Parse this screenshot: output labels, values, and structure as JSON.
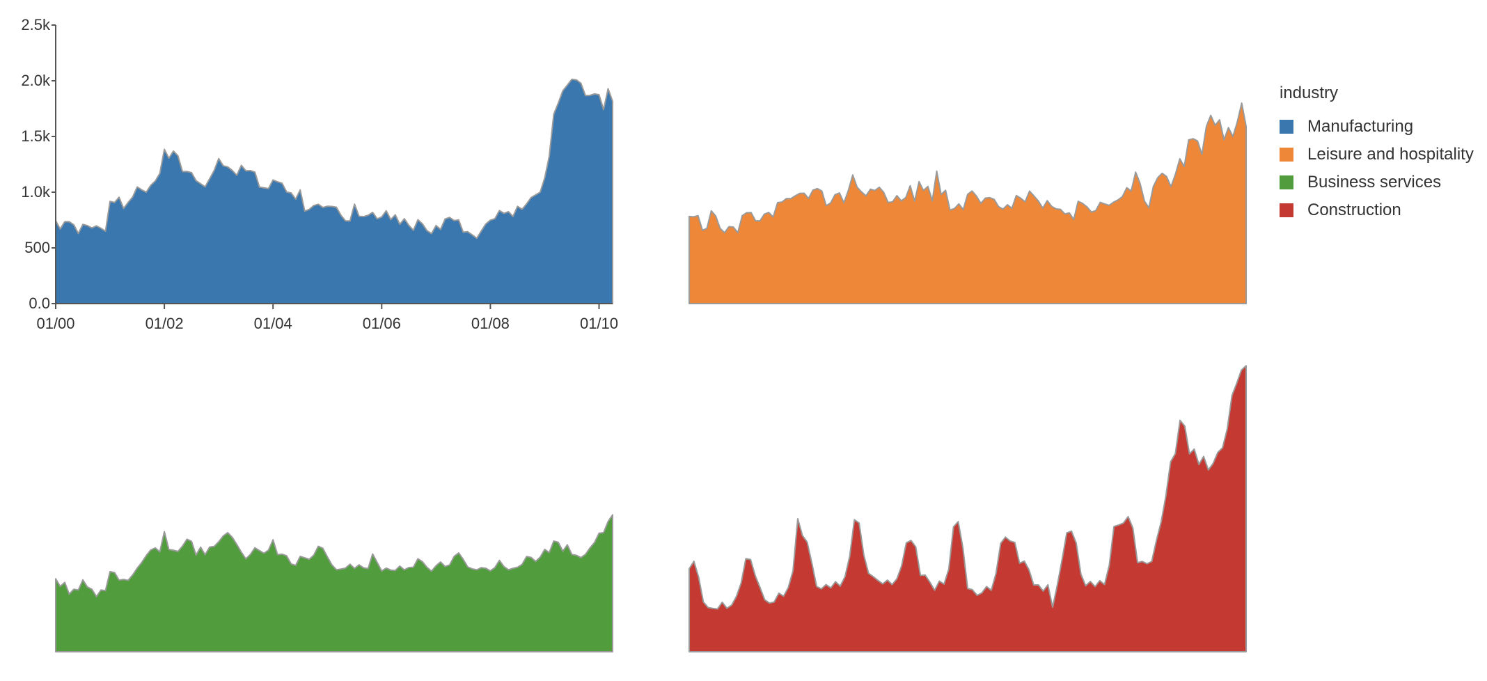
{
  "chart_data": {
    "type": "area",
    "layout": "small-multiples",
    "x_tick_labels": [
      "01/00",
      "01/02",
      "01/04",
      "01/06",
      "01/08",
      "01/10"
    ],
    "y_tick_labels": [
      "0.0",
      "500",
      "1.0k",
      "1.5k",
      "2.0k",
      "2.5k"
    ],
    "ylim": [
      0,
      2500
    ],
    "grid": false,
    "legend": {
      "title": "industry",
      "placement": "right"
    },
    "series": [
      {
        "name": "Manufacturing",
        "color": "#3a77ae",
        "values": [
          745,
          669,
          735,
          735,
          707,
          629,
          711,
          700,
          679,
          698,
          676,
          650,
          918,
          907,
          955,
          854,
          908,
          957,
          1047,
          1021,
          1000,
          1062,
          1101,
          1169,
          1385,
          1305,
          1369,
          1327,
          1185,
          1186,
          1176,
          1103,
          1076,
          1048,
          1120,
          1195,
          1302,
          1237,
          1227,
          1195,
          1152,
          1241,
          1192,
          1194,
          1180,
          1046,
          1039,
          1032,
          1110,
          1093,
          1081,
          1002,
          993,
          938,
          1020,
          830,
          846,
          880,
          892,
          863,
          874,
          872,
          865,
          793,
          743,
          742,
          893,
          784,
          781,
          793,
          819,
          761,
          778,
          833,
          754,
          797,
          712,
          762,
          702,
          658,
          753,
          715,
          655,
          628,
          701,
          666,
          759,
          774,
          745,
          752,
          641,
          645,
          617,
          586,
          652,
          715,
          749,
          762,
          835,
          810,
          825,
          782,
          873,
          846,
          895,
          952,
          976,
          1000,
          1128,
          1321,
          1700,
          1800,
          1910,
          1961,
          2013,
          2008,
          1978,
          1867,
          1869,
          1882,
          1875,
          1742,
          1929,
          1815
        ]
      },
      {
        "name": "Leisure and hospitality",
        "color": "#ee8737",
        "values": [
          782,
          779,
          789,
          658,
          675,
          833,
          786,
          675,
          636,
          691,
          687,
          637,
          789,
          816,
          817,
          744,
          742,
          803,
          818,
          777,
          906,
          912,
          943,
          942,
          967,
          989,
          991,
          943,
          1019,
          1032,
          1011,
          879,
          903,
          978,
          993,
          905,
          1015,
          1155,
          1044,
          1002,
          967,
          1027,
          1015,
          1044,
          999,
          908,
          913,
          969,
          922,
          952,
          1058,
          920,
          1095,
          1015,
          1052,
          923,
          1189,
          979,
          1017,
          840,
          853,
          895,
          844,
          981,
          1011,
          964,
          900,
          947,
          951,
          935,
          870,
          848,
          887,
          855,
          970,
          946,
          914,
          1010,
          966,
          920,
          857,
          924,
          873,
          850,
          846,
          804,
          814,
          755,
          919,
          899,
          868,
          822,
          835,
          909,
          894,
          882,
          910,
          930,
          960,
          1040,
          1010,
          1180,
          1080,
          920,
          860,
          1050,
          1130,
          1170,
          1140,
          1050,
          1160,
          1300,
          1230,
          1470,
          1480,
          1460,
          1340,
          1590,
          1690,
          1600,
          1650,
          1470,
          1580,
          1500,
          1630,
          1800,
          1590
        ]
      },
      {
        "name": "Business services",
        "color": "#519d3e",
        "values": [
          655,
          587,
          623,
          517,
          561,
          554,
          645,
          581,
          561,
          495,
          554,
          549,
          719,
          711,
          643,
          649,
          641,
          689,
          750,
          801,
          863,
          914,
          932,
          897,
          1078,
          918,
          911,
          900,
          948,
          1010,
          991,
          868,
          939,
          871,
          940,
          945,
          987,
          1039,
          1069,
          1027,
          963,
          894,
          834,
          874,
          933,
          908,
          884,
          912,
          1005,
          872,
          876,
          861,
          789,
          775,
          856,
          843,
          830,
          867,
          947,
          929,
          852,
          780,
          736,
          742,
          751,
          786,
          748,
          780,
          753,
          747,
          878,
          802,
          725,
          751,
          733,
          730,
          769,
          735,
          756,
          759,
          835,
          808,
          758,
          723,
          772,
          806,
          765,
          779,
          856,
          887,
          830,
          761,
          744,
          735,
          755,
          749,
          726,
          755,
          820,
          764,
          736,
          749,
          758,
          784,
          855,
          847,
          811,
          849,
          919,
          890,
          994,
          982,
          903,
          960,
          873,
          866,
          845,
          874,
          932,
          980,
          1064,
          1069,
          1169,
          1229
        ]
      },
      {
        "name": "Construction",
        "color": "#c43a32",
        "values": [
          745,
          812,
          669,
          447,
          397,
          389,
          384,
          445,
          390,
          419,
          496,
          617,
          835,
          828,
          683,
          577,
          467,
          437,
          446,
          526,
          498,
          577,
          727,
          1194,
          1043,
          984,
          794,
          586,
          564,
          603,
          573,
          629,
          589,
          673,
          855,
          1185,
          1156,
          868,
          704,
          674,
          640,
          609,
          643,
          603,
          654,
          770,
          977,
          999,
          941,
          685,
          688,
          625,
          552,
          634,
          607,
          743,
          1121,
          1168,
          930,
          568,
          557,
          506,
          528,
          585,
          552,
          702,
          973,
          1029,
          994,
          981,
          794,
          814,
          735,
          599,
          600,
          545,
          601,
          400,
          599,
          826,
          1067,
          1083,
          975,
          696,
          592,
          631,
          584,
          638,
          603,
          776,
          1124,
          1138,
          1155,
          1213,
          1110,
          800,
          811,
          790,
          811,
          1000,
          1166,
          1399,
          1705,
          1778,
          2077,
          2025,
          1776,
          1819,
          1681,
          1753,
          1632,
          1690,
          1789,
          1831,
          1999,
          2299,
          2409,
          2528,
          2567
        ]
      }
    ]
  }
}
